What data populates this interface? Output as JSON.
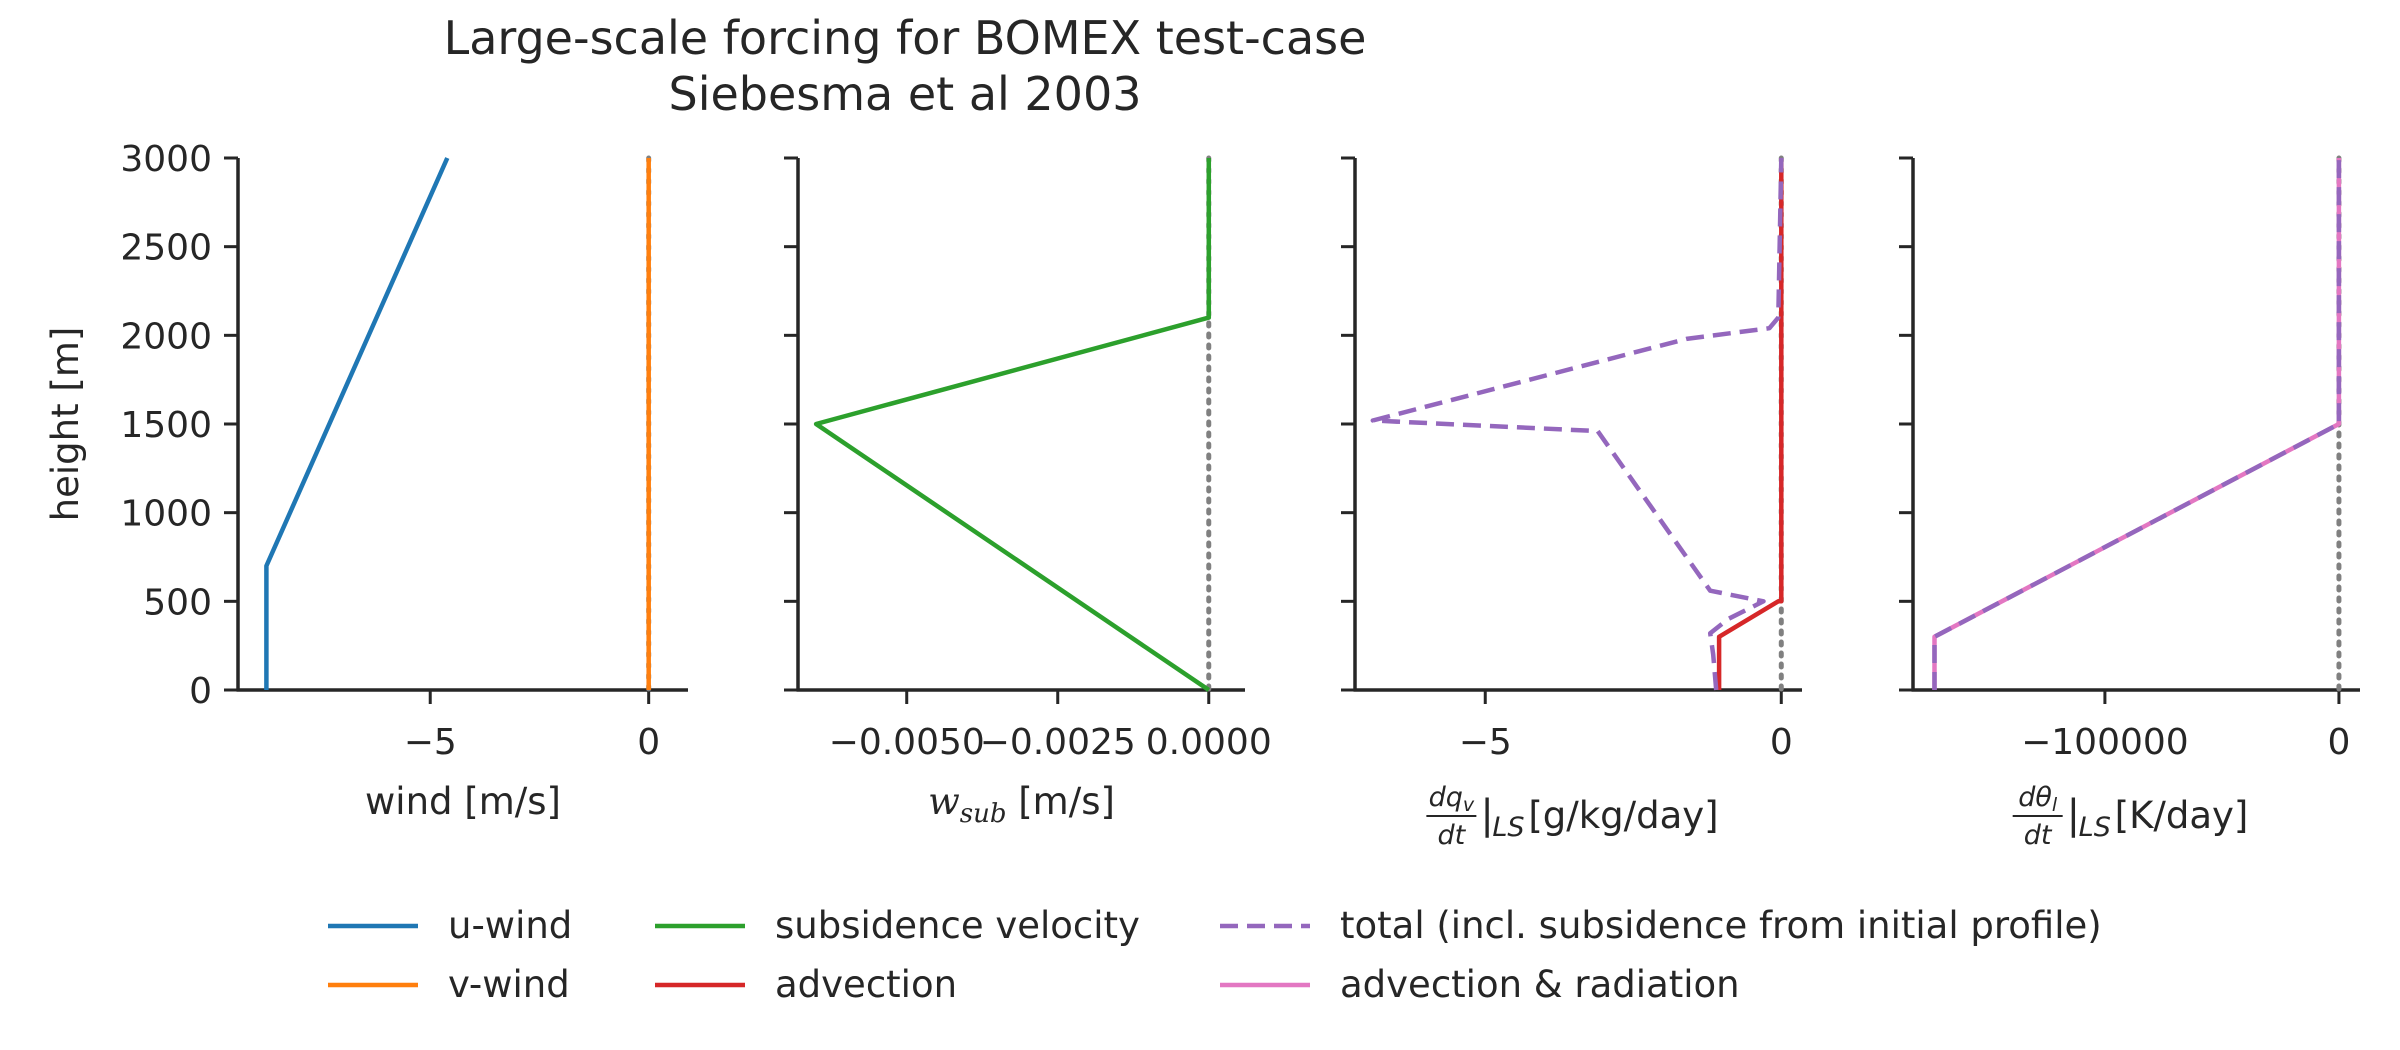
{
  "title": [
    "Large-scale forcing for BOMEX test-case",
    "Siebesma et al 2003"
  ],
  "colors": {
    "u_wind": "#1f77b4",
    "v_wind": "#ff7f0e",
    "subsidence": "#2ca02c",
    "advection": "#d62728",
    "total": "#9467bd",
    "adv_rad": "#e377c2",
    "zero_line": "#808080",
    "axis": "#262626"
  },
  "chart_data": [
    {
      "type": "line",
      "xlabel": "wind [m/s]",
      "ylabel": "height [m]",
      "xlim": [
        -9.4,
        0.9
      ],
      "ylim": [
        0,
        3000
      ],
      "xticks": [
        {
          "v": -5,
          "label": "−5"
        },
        {
          "v": 0,
          "label": "0"
        }
      ],
      "yticks": [
        0,
        500,
        1000,
        1500,
        2000,
        2500,
        3000
      ],
      "zero_line": true,
      "series": [
        {
          "name": "u-wind",
          "color": "u_wind",
          "dash": "solid",
          "x": [
            -8.75,
            -8.75,
            -4.61
          ],
          "y": [
            0,
            700,
            3000
          ]
        },
        {
          "name": "v-wind",
          "color": "v_wind",
          "dash": "solid",
          "x": [
            0,
            0
          ],
          "y": [
            0,
            3000
          ]
        }
      ]
    },
    {
      "type": "line",
      "xlabel_parts": [
        {
          "t": "w",
          "style": "italic"
        },
        {
          "t": "sub",
          "style": "italic-sub"
        },
        {
          "t": " [m/s]"
        }
      ],
      "ylim": [
        0,
        3000
      ],
      "xlim": [
        -0.0068,
        0.0006
      ],
      "xticks": [
        {
          "v": -0.005,
          "label": "−0.0050"
        },
        {
          "v": -0.0025,
          "label": "−0.0025"
        },
        {
          "v": 0,
          "label": "0.0000"
        }
      ],
      "yticks": [
        0,
        500,
        1000,
        1500,
        2000,
        2500,
        3000
      ],
      "zero_line": true,
      "series": [
        {
          "name": "subsidence velocity",
          "color": "subsidence",
          "dash": "solid",
          "x": [
            0,
            -0.0065,
            0,
            0
          ],
          "y": [
            0,
            1500,
            2100,
            3000
          ]
        }
      ]
    },
    {
      "type": "line",
      "xlabel_parts": [
        {
          "t": "dqv/dt",
          "style": "frac",
          "num": "dq",
          "numsub": "v",
          "den": "dt"
        },
        {
          "t": "|",
          "style": "bar"
        },
        {
          "t": "LS",
          "style": "italic-sub"
        },
        {
          "t": " [g/kg/day]"
        }
      ],
      "ylim": [
        0,
        3000
      ],
      "xlim": [
        -7.2,
        0.35
      ],
      "xticks": [
        {
          "v": -5,
          "label": "−5"
        },
        {
          "v": 0,
          "label": "0"
        }
      ],
      "yticks": [
        0,
        500,
        1000,
        1500,
        2000,
        2500,
        3000
      ],
      "zero_line": true,
      "series": [
        {
          "name": "advection",
          "color": "advection",
          "dash": "solid",
          "x": [
            -1.05,
            -1.05,
            -0.05,
            0,
            0
          ],
          "y": [
            0,
            300,
            500,
            500,
            3000
          ]
        },
        {
          "name": "total (incl. subsidence from initial profile)",
          "color": "total",
          "dash": "dashed",
          "x": [
            -1.1,
            -1.15,
            -1.2,
            -0.9,
            -0.3,
            -1.2,
            -3.1,
            -6.9,
            -1.6,
            -0.2,
            -0.05,
            0
          ],
          "y": [
            0,
            200,
            320,
            400,
            500,
            560,
            1460,
            1520,
            1980,
            2040,
            2100,
            3000
          ]
        }
      ]
    },
    {
      "type": "line",
      "xlabel_parts": [
        {
          "t": "dθl/dt",
          "style": "frac",
          "num": "dθ",
          "numsub": "l",
          "den": "dt"
        },
        {
          "t": "|",
          "style": "bar"
        },
        {
          "t": "LS",
          "style": "italic-sub"
        },
        {
          "t": " [K/day]"
        }
      ],
      "ylim": [
        0,
        3000
      ],
      "xlim": [
        -182000,
        9000
      ],
      "xticks": [
        {
          "v": -100000,
          "label": "−100000"
        },
        {
          "v": 0,
          "label": "0"
        }
      ],
      "yticks": [
        0,
        500,
        1000,
        1500,
        2000,
        2500,
        3000
      ],
      "zero_line": true,
      "series": [
        {
          "name": "advection & radiation",
          "color": "adv_rad",
          "dash": "solid",
          "x": [
            -172800,
            -172800,
            0,
            0
          ],
          "y": [
            0,
            300,
            1500,
            3000
          ]
        },
        {
          "name": "total (incl. subsidence from initial profile)",
          "color": "total",
          "dash": "dashed",
          "x": [
            -172800,
            -172800,
            0,
            0
          ],
          "y": [
            0,
            300,
            1500,
            3000
          ]
        }
      ]
    }
  ],
  "legend": {
    "placement": "bottom",
    "entries": [
      {
        "label": "u-wind",
        "color": "u_wind",
        "dash": "solid"
      },
      {
        "label": "v-wind",
        "color": "v_wind",
        "dash": "solid"
      },
      {
        "label": "subsidence velocity",
        "color": "subsidence",
        "dash": "solid"
      },
      {
        "label": "advection",
        "color": "advection",
        "dash": "solid"
      },
      {
        "label": "total (incl. subsidence from initial profile)",
        "color": "total",
        "dash": "dashed"
      },
      {
        "label": "advection & radiation",
        "color": "adv_rad",
        "dash": "solid"
      }
    ]
  }
}
